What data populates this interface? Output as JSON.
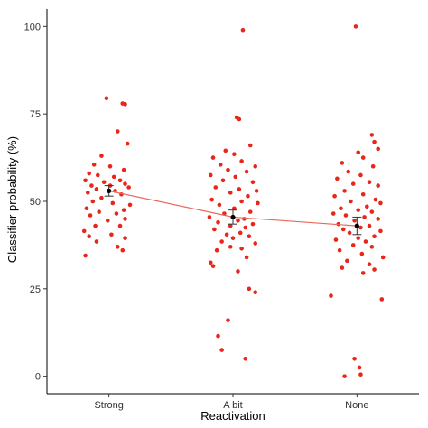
{
  "chart_data": {
    "type": "scatter",
    "xlabel": "Reactivation",
    "ylabel": "Classifier probability (%)",
    "categories": [
      "Strong",
      "A bit",
      "None"
    ],
    "ylim": [
      -5,
      105
    ],
    "yticks": [
      0,
      25,
      50,
      75,
      100
    ],
    "grid": false,
    "point_color": "#e8271a",
    "line_color": "#e8685a",
    "means": [
      53.0,
      45.5,
      43.0
    ],
    "errors": [
      [
        51.5,
        54.5
      ],
      [
        43.5,
        47.5
      ],
      [
        40.5,
        45.5
      ]
    ],
    "points": [
      [
        [
          -0.02,
          79.5
        ],
        [
          0.11,
          78.0
        ],
        [
          0.13,
          77.8
        ],
        [
          0.07,
          70.0
        ],
        [
          0.15,
          66.5
        ],
        [
          -0.06,
          63.0
        ],
        [
          -0.12,
          60.5
        ],
        [
          0.01,
          60.0
        ],
        [
          0.12,
          59.0
        ],
        [
          -0.16,
          58.0
        ],
        [
          -0.09,
          57.5
        ],
        [
          0.04,
          57.0
        ],
        [
          -0.19,
          56.0
        ],
        [
          0.09,
          56.0
        ],
        [
          -0.04,
          55.5
        ],
        [
          0.13,
          55.0
        ],
        [
          -0.14,
          54.5
        ],
        [
          0.01,
          54.5
        ],
        [
          0.16,
          54.0
        ],
        [
          -0.1,
          53.5
        ],
        [
          0.05,
          53.0
        ],
        [
          -0.17,
          52.5
        ],
        [
          0.1,
          52.0
        ],
        [
          -0.06,
          51.0
        ],
        [
          -0.13,
          50.0
        ],
        [
          0.03,
          49.5
        ],
        [
          0.17,
          49.0
        ],
        [
          -0.18,
          48.0
        ],
        [
          0.12,
          47.5
        ],
        [
          -0.08,
          47.0
        ],
        [
          0.06,
          46.5
        ],
        [
          -0.15,
          46.0
        ],
        [
          0.13,
          45.0
        ],
        [
          -0.01,
          44.5
        ],
        [
          -0.11,
          43.0
        ],
        [
          0.09,
          43.0
        ],
        [
          -0.2,
          41.5
        ],
        [
          0.02,
          40.5
        ],
        [
          -0.16,
          40.0
        ],
        [
          0.13,
          39.5
        ],
        [
          -0.1,
          38.5
        ],
        [
          0.07,
          37.0
        ],
        [
          0.11,
          36.0
        ],
        [
          -0.19,
          34.5
        ]
      ],
      [
        [
          0.08,
          99.0
        ],
        [
          0.03,
          74.0
        ],
        [
          0.05,
          73.5
        ],
        [
          0.14,
          66.0
        ],
        [
          -0.06,
          64.5
        ],
        [
          0.01,
          63.5
        ],
        [
          -0.16,
          62.5
        ],
        [
          0.07,
          61.5
        ],
        [
          -0.1,
          60.5
        ],
        [
          0.18,
          60.0
        ],
        [
          -0.04,
          59.0
        ],
        [
          0.11,
          58.5
        ],
        [
          -0.18,
          57.5
        ],
        [
          0.02,
          57.0
        ],
        [
          -0.08,
          56.0
        ],
        [
          0.16,
          55.5
        ],
        [
          -0.14,
          54.0
        ],
        [
          0.05,
          53.5
        ],
        [
          0.19,
          53.0
        ],
        [
          -0.02,
          52.5
        ],
        [
          0.12,
          51.5
        ],
        [
          -0.17,
          50.5
        ],
        [
          0.07,
          50.0
        ],
        [
          0.2,
          49.5
        ],
        [
          -0.11,
          49.0
        ],
        [
          0.01,
          48.0
        ],
        [
          0.14,
          47.0
        ],
        [
          -0.07,
          46.5
        ],
        [
          -0.19,
          45.5
        ],
        [
          0.09,
          45.0
        ],
        [
          0.04,
          44.5
        ],
        [
          -0.12,
          44.0
        ],
        [
          0.16,
          43.5
        ],
        [
          -0.02,
          43.0
        ],
        [
          0.1,
          42.5
        ],
        [
          -0.15,
          42.0
        ],
        [
          0.06,
          41.0
        ],
        [
          -0.05,
          40.5
        ],
        [
          0.13,
          40.0
        ],
        [
          0.0,
          39.5
        ],
        [
          -0.09,
          38.5
        ],
        [
          0.18,
          38.0
        ],
        [
          -0.02,
          37.0
        ],
        [
          0.07,
          36.5
        ],
        [
          -0.13,
          36.0
        ],
        [
          0.11,
          34.0
        ],
        [
          -0.18,
          32.5
        ],
        [
          -0.16,
          31.5
        ],
        [
          0.04,
          30.0
        ],
        [
          0.13,
          25.0
        ],
        [
          0.18,
          24.0
        ],
        [
          -0.04,
          16.0
        ],
        [
          -0.12,
          11.5
        ],
        [
          -0.09,
          7.5
        ],
        [
          0.1,
          5.0
        ]
      ],
      [
        [
          -0.01,
          100.0
        ],
        [
          0.12,
          69.0
        ],
        [
          0.14,
          67.0
        ],
        [
          0.17,
          65.0
        ],
        [
          0.01,
          64.0
        ],
        [
          0.05,
          62.5
        ],
        [
          -0.12,
          61.0
        ],
        [
          0.13,
          60.0
        ],
        [
          -0.07,
          58.5
        ],
        [
          0.03,
          57.5
        ],
        [
          -0.16,
          56.5
        ],
        [
          0.1,
          55.5
        ],
        [
          -0.03,
          55.0
        ],
        [
          0.17,
          54.5
        ],
        [
          -0.1,
          53.0
        ],
        [
          0.05,
          52.0
        ],
        [
          -0.18,
          51.5
        ],
        [
          0.15,
          50.5
        ],
        [
          -0.05,
          50.0
        ],
        [
          0.19,
          49.5
        ],
        [
          0.08,
          48.5
        ],
        [
          -0.13,
          48.0
        ],
        [
          0.01,
          47.5
        ],
        [
          0.12,
          47.0
        ],
        [
          -0.19,
          46.5
        ],
        [
          -0.09,
          46.0
        ],
        [
          0.06,
          45.5
        ],
        [
          0.17,
          45.0
        ],
        [
          -0.02,
          44.5
        ],
        [
          -0.15,
          43.5
        ],
        [
          0.1,
          43.0
        ],
        [
          0.03,
          42.5
        ],
        [
          -0.11,
          42.0
        ],
        [
          0.19,
          41.5
        ],
        [
          -0.06,
          41.0
        ],
        [
          0.14,
          40.0
        ],
        [
          0.01,
          39.5
        ],
        [
          -0.17,
          39.0
        ],
        [
          0.07,
          38.5
        ],
        [
          -0.03,
          37.5
        ],
        [
          0.12,
          37.0
        ],
        [
          -0.14,
          36.0
        ],
        [
          0.04,
          35.0
        ],
        [
          0.21,
          34.0
        ],
        [
          -0.08,
          33.0
        ],
        [
          0.1,
          32.0
        ],
        [
          -0.12,
          31.0
        ],
        [
          0.14,
          30.5
        ],
        [
          0.05,
          29.5
        ],
        [
          -0.21,
          23.0
        ],
        [
          0.2,
          22.0
        ],
        [
          -0.02,
          5.0
        ],
        [
          0.02,
          2.5
        ],
        [
          0.03,
          0.5
        ],
        [
          -0.1,
          0.0
        ]
      ]
    ]
  }
}
